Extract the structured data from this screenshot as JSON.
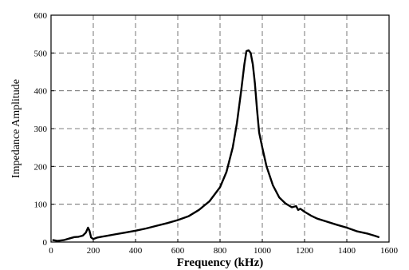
{
  "chart_data": {
    "type": "line",
    "title": "",
    "xlabel": "Frequency (kHz)",
    "ylabel": "Impedance Amplitude",
    "xlim": [
      0,
      1600
    ],
    "ylim": [
      0,
      600
    ],
    "xticks": [
      0,
      200,
      400,
      600,
      800,
      1000,
      1200,
      1400,
      1600
    ],
    "yticks": [
      0,
      100,
      200,
      300,
      400,
      500,
      600
    ],
    "grid": true,
    "legend": "none",
    "colors": {
      "line": "#000000",
      "grid": "#555555"
    },
    "series": [
      {
        "x": [
          10,
          30,
          60,
          90,
          110,
          130,
          150,
          165,
          175,
          182,
          190,
          200,
          220,
          260,
          300,
          350,
          400,
          450,
          500,
          550,
          600,
          650,
          700,
          750,
          800,
          830,
          860,
          880,
          900,
          915,
          925,
          935,
          945,
          955,
          965,
          975,
          985,
          1000,
          1020,
          1050,
          1080,
          1110,
          1140,
          1160,
          1170,
          1180,
          1200,
          1230,
          1260,
          1300,
          1350,
          1400,
          1450,
          1500,
          1530,
          1550
        ],
        "y": [
          5,
          3,
          5,
          10,
          13,
          14,
          17,
          25,
          38,
          30,
          12,
          8,
          12,
          16,
          20,
          25,
          30,
          36,
          43,
          50,
          58,
          68,
          85,
          108,
          145,
          185,
          250,
          315,
          400,
          470,
          505,
          507,
          500,
          470,
          420,
          350,
          290,
          250,
          200,
          150,
          118,
          102,
          92,
          95,
          85,
          88,
          80,
          70,
          62,
          55,
          46,
          38,
          28,
          22,
          17,
          13
        ]
      }
    ]
  }
}
